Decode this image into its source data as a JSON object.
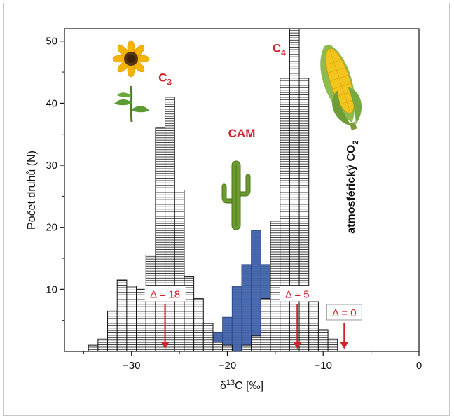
{
  "chart_data": {
    "type": "bar",
    "xlabel": "δ13C [‰]",
    "xlabel_main": "δ",
    "xlabel_sup": "13",
    "xlabel_rest": "C [‰]",
    "ylabel": "Počet druhů (N)",
    "xlim": [
      -37,
      0
    ],
    "ylim": [
      0,
      52
    ],
    "x_ticks": [
      -30,
      -20,
      -10,
      0
    ],
    "x_tick_labels": [
      "−30",
      "−20",
      "−10",
      "0"
    ],
    "y_ticks": [
      10,
      20,
      30,
      40,
      50
    ],
    "y_tick_labels": [
      "10",
      "20",
      "30",
      "40",
      "50"
    ],
    "bin_width": 1,
    "series": [
      {
        "name": "C3",
        "color": "#ffffff",
        "bins": [
          {
            "x": -34,
            "y": 1
          },
          {
            "x": -33,
            "y": 2
          },
          {
            "x": -32,
            "y": 6.5
          },
          {
            "x": -31,
            "y": 11.5
          },
          {
            "x": -30,
            "y": 10.5
          },
          {
            "x": -29,
            "y": 10
          },
          {
            "x": -28,
            "y": 15.5
          },
          {
            "x": -27,
            "y": 36
          },
          {
            "x": -26,
            "y": 41
          },
          {
            "x": -25,
            "y": 26
          },
          {
            "x": -24,
            "y": 12
          },
          {
            "x": -23,
            "y": 8.5
          },
          {
            "x": -22,
            "y": 4.5
          },
          {
            "x": -21,
            "y": 1.5
          },
          {
            "x": -20,
            "y": 1
          }
        ]
      },
      {
        "name": "CAM",
        "color": "#4a6bb0",
        "bins": [
          {
            "x": -22,
            "y": 1.5
          },
          {
            "x": -21,
            "y": 3
          },
          {
            "x": -20,
            "y": 5.5
          },
          {
            "x": -19,
            "y": 10.5
          },
          {
            "x": -18,
            "y": 14
          },
          {
            "x": -17,
            "y": 19.5
          },
          {
            "x": -16,
            "y": 14
          },
          {
            "x": -15,
            "y": 9.5
          },
          {
            "x": -14,
            "y": 5
          },
          {
            "x": -13,
            "y": 3.5
          }
        ]
      },
      {
        "name": "C4",
        "color": "#ffffff",
        "bins": [
          {
            "x": -18,
            "y": 1
          },
          {
            "x": -17,
            "y": 2.5
          },
          {
            "x": -16,
            "y": 8.5
          },
          {
            "x": -15,
            "y": 21
          },
          {
            "x": -14,
            "y": 44
          },
          {
            "x": -13,
            "y": 52
          },
          {
            "x": -12,
            "y": 44
          },
          {
            "x": -11,
            "y": 8
          },
          {
            "x": -10,
            "y": 3.5
          },
          {
            "x": -9,
            "y": 2
          }
        ]
      }
    ],
    "group_labels": [
      {
        "name": "C",
        "sub": "3",
        "x": -26.5,
        "y": 43.5,
        "color": "#d2232a"
      },
      {
        "name": "CAM",
        "sub": "",
        "x": -18.5,
        "y": 34.5,
        "color": "#d2232a"
      },
      {
        "name": "C",
        "sub": "4",
        "x": -14.6,
        "y": 48.2,
        "color": "#d2232a"
      }
    ],
    "annotations": [
      {
        "label": "Δ = 18",
        "x": -26.5,
        "arrow_top": 6.5,
        "arrow_bottom": 0.4,
        "boxed": false,
        "color": "#d2232a"
      },
      {
        "label": "Δ = 5",
        "x": -12.7,
        "arrow_top": 6.5,
        "arrow_bottom": 0.4,
        "boxed": false,
        "color": "#d2232a"
      },
      {
        "label": "Δ = 0",
        "x": -7.8,
        "arrow_top": 3.5,
        "arrow_bottom": 0.4,
        "boxed": true,
        "color": "#d2232a"
      }
    ],
    "atmospheric_label": "atmosférický CO",
    "atmospheric_sub": "2",
    "plant_icons": [
      "sunflower-icon",
      "cactus-icon",
      "corn-icon"
    ],
    "hatch_color": "#222222",
    "grid": false,
    "legend": "none"
  }
}
